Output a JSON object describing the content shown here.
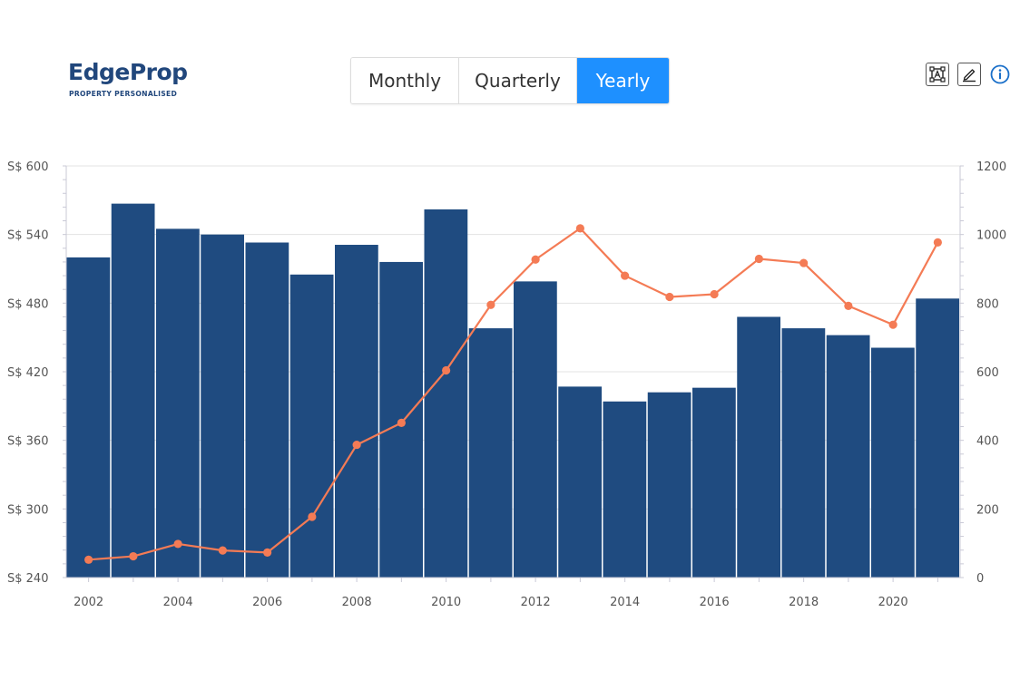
{
  "brand": {
    "name_part1": "Edge",
    "name_part2": "Prop",
    "tagline": "PROPERTY PERSONALISED"
  },
  "period_toggle": {
    "options": [
      "Monthly",
      "Quarterly",
      "Yearly"
    ],
    "selected": "Yearly"
  },
  "toolbar": {
    "icons": [
      "select-area-icon",
      "edit-icon",
      "info-icon"
    ]
  },
  "colors": {
    "bar": "#1f4b80",
    "line": "#f47b55",
    "active_tab": "#1e90ff",
    "grid": "#e3e3e3"
  },
  "chart_data": {
    "type": "bar",
    "x": [
      2002,
      2003,
      2004,
      2005,
      2006,
      2007,
      2008,
      2009,
      2010,
      2011,
      2012,
      2013,
      2014,
      2015,
      2016,
      2017,
      2018,
      2019,
      2020,
      2021
    ],
    "xticks": [
      "2002",
      "2004",
      "2006",
      "2008",
      "2010",
      "2012",
      "2014",
      "2016",
      "2018",
      "2020"
    ],
    "left_axis": {
      "ticks": [
        "S$ 240",
        "S$ 300",
        "S$ 360",
        "S$ 420",
        "S$ 480",
        "S$ 540",
        "S$ 600"
      ],
      "range": [
        240,
        600
      ]
    },
    "right_axis": {
      "ticks": [
        "0",
        "200",
        "400",
        "600",
        "800",
        "1000",
        "1200"
      ],
      "range": [
        0,
        1200
      ]
    },
    "series": [
      {
        "type": "bar",
        "axis": "left",
        "values": [
          520,
          567,
          545,
          540,
          533,
          505,
          531,
          516,
          562,
          458,
          499,
          407,
          394,
          402,
          406,
          468,
          458,
          452,
          441,
          484
        ]
      },
      {
        "type": "line",
        "axis": "right",
        "values": [
          52,
          62,
          98,
          79,
          73,
          177,
          387,
          451,
          604,
          795,
          927,
          1018,
          880,
          818,
          826,
          929,
          917,
          792,
          737,
          977
        ]
      }
    ],
    "grid": true
  }
}
